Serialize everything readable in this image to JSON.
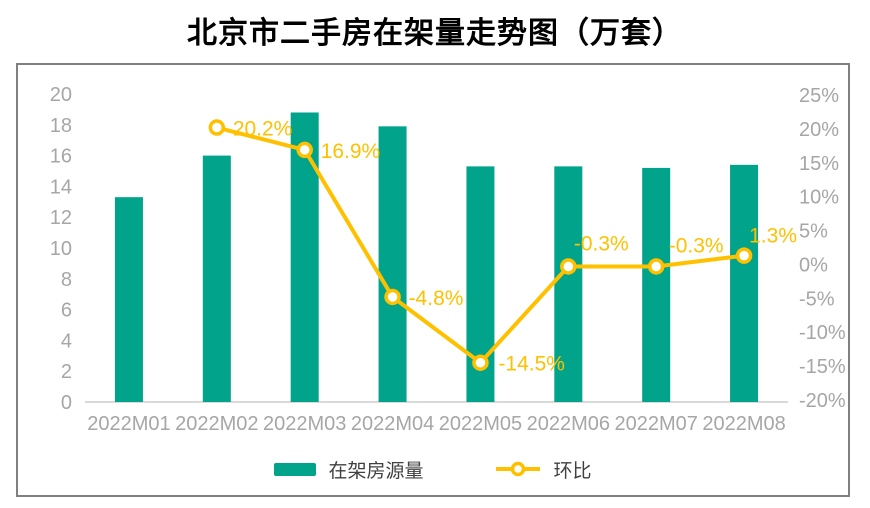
{
  "title": "北京市二手房在架量走势图（万套）",
  "colors": {
    "bar": "#01A38A",
    "line": "#FFC000",
    "marker_fill": "#FFFFFF",
    "axis_text": "#A6A6A6",
    "legend_text": "#404040",
    "baseline": "#D9D9D9",
    "frame_border": "#808080",
    "title_text": "#000000"
  },
  "legend": {
    "bar_label": "在架房源量",
    "line_label": "环比"
  },
  "chart_data": {
    "type": "bar+line combo",
    "title": "北京市二手房在架量走势图（万套）",
    "categories": [
      "2022M01",
      "2022M02",
      "2022M03",
      "2022M04",
      "2022M05",
      "2022M06",
      "2022M07",
      "2022M08"
    ],
    "series": [
      {
        "name": "在架房源量",
        "type": "bar",
        "axis": "left",
        "values": [
          13.3,
          16.0,
          18.8,
          17.9,
          15.3,
          15.3,
          15.2,
          15.4
        ]
      },
      {
        "name": "环比",
        "type": "line",
        "axis": "right",
        "values": [
          null,
          20.2,
          16.9,
          -4.8,
          -14.5,
          -0.3,
          -0.3,
          1.3
        ],
        "labels": [
          null,
          "20.2%",
          "16.9%",
          "-4.8%",
          "-14.5%",
          "-0.3%",
          "-0.3%",
          "1.3%"
        ]
      }
    ],
    "left_axis": {
      "min": 0,
      "max": 20,
      "step": 2,
      "ticks": [
        "0",
        "2",
        "4",
        "6",
        "8",
        "10",
        "12",
        "14",
        "16",
        "18",
        "20"
      ]
    },
    "right_axis": {
      "min": -20,
      "max": 25,
      "step": 5,
      "ticks": [
        "-20%",
        "-15%",
        "-10%",
        "-5%",
        "0%",
        "5%",
        "10%",
        "15%",
        "20%",
        "25%"
      ]
    },
    "grid": false,
    "legend_position": "bottom"
  }
}
